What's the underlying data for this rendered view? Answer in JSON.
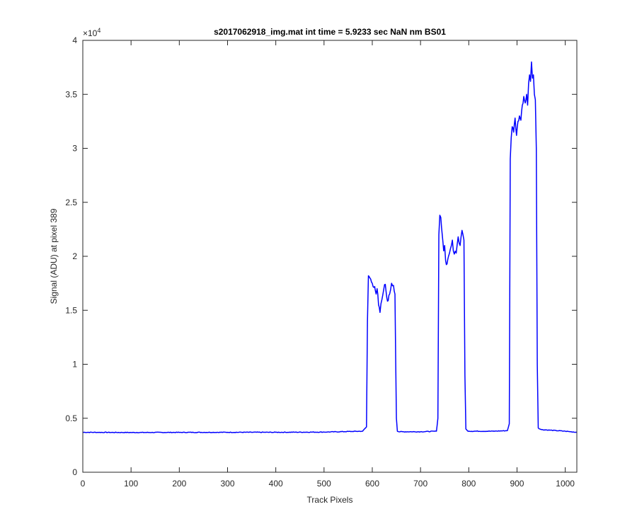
{
  "chart_data": {
    "type": "line",
    "title": "s2017062918_img.mat int time = 5.9233 sec  NaN nm BS01",
    "xlabel": "Track Pixels",
    "ylabel": "Signal (ADU) at pixel 389",
    "exponent_label": "×10",
    "exponent_power": "4",
    "xlim": [
      0,
      1024
    ],
    "ylim": [
      0,
      40000
    ],
    "x_ticks": [
      0,
      100,
      200,
      300,
      400,
      500,
      600,
      700,
      800,
      900,
      1000
    ],
    "x_tick_labels": [
      "0",
      "100",
      "200",
      "300",
      "400",
      "500",
      "600",
      "700",
      "800",
      "900",
      "1000"
    ],
    "y_ticks": [
      0,
      5000,
      10000,
      15000,
      20000,
      25000,
      30000,
      35000,
      40000
    ],
    "y_tick_labels": [
      "0",
      "0.5",
      "1",
      "1.5",
      "2",
      "2.5",
      "3",
      "3.5",
      "4"
    ],
    "grid": false,
    "line_color": "#0000ff",
    "series": [
      {
        "x": [
          0,
          100,
          200,
          300,
          400,
          500,
          580,
          588,
          590,
          592,
          595,
          600,
          605,
          608,
          610,
          613,
          616,
          620,
          624,
          627,
          630,
          633,
          636,
          640,
          644,
          647,
          650,
          652,
          655,
          700,
          733,
          736,
          738,
          740,
          742,
          745,
          748,
          750,
          752,
          755,
          758,
          762,
          766,
          768,
          770,
          774,
          778,
          782,
          786,
          788,
          790,
          792,
          794,
          797,
          800,
          850,
          880,
          884,
          886,
          888,
          890,
          893,
          896,
          899,
          902,
          905,
          908,
          911,
          914,
          917,
          920,
          922,
          924,
          926,
          928,
          930,
          932,
          934,
          936,
          938,
          940,
          942,
          944,
          950,
          1000,
          1024
        ],
        "y": [
          3700,
          3680,
          3690,
          3700,
          3700,
          3720,
          3800,
          4200,
          14000,
          18200,
          18000,
          17500,
          17200,
          16500,
          17000,
          15500,
          14800,
          16000,
          17000,
          17400,
          16200,
          15900,
          16500,
          17500,
          17300,
          16500,
          5000,
          3800,
          3750,
          3750,
          3800,
          5000,
          22000,
          23800,
          23600,
          22000,
          20500,
          21000,
          19600,
          19300,
          20000,
          20700,
          21500,
          20500,
          20200,
          20300,
          21800,
          21000,
          22400,
          22000,
          21500,
          9000,
          4000,
          3850,
          3800,
          3800,
          3850,
          4500,
          29000,
          31000,
          32000,
          31500,
          32800,
          31200,
          32500,
          33000,
          32600,
          34000,
          34800,
          34200,
          35000,
          34000,
          36000,
          36800,
          36200,
          38000,
          36500,
          36800,
          35000,
          34500,
          30000,
          10000,
          4100,
          3950,
          3800,
          3700
        ]
      }
    ]
  }
}
